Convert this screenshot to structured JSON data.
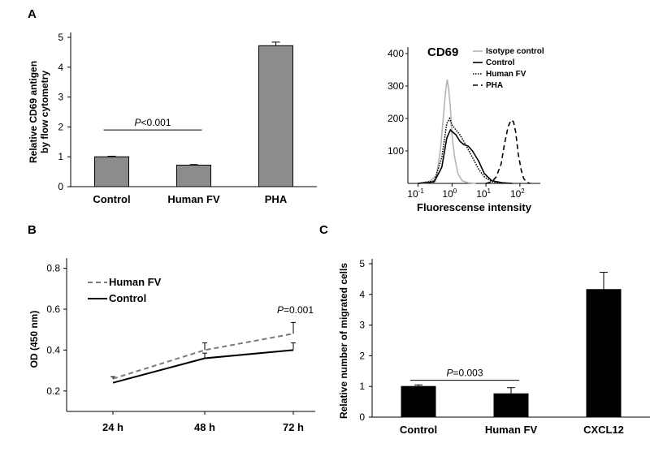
{
  "figure": {
    "panel_labels": [
      "A",
      "B",
      "C"
    ]
  },
  "chart_data": [
    {
      "id": "A1",
      "type": "bar",
      "title": "",
      "xlabel": "",
      "ylabel": "Relative CD69 antigen by flow cytometry",
      "ylabel_lines": [
        "Relative CD69 antigen",
        "by flow cytometry"
      ],
      "categories": [
        "Control",
        "Human FV",
        "PHA"
      ],
      "values": [
        1.0,
        0.72,
        4.72
      ],
      "errors": [
        0.02,
        0.02,
        0.12
      ],
      "ylim": [
        0,
        5
      ],
      "yticks": [
        0,
        1,
        2,
        3,
        4,
        5
      ],
      "bar_color": "#8c8c8c",
      "annotation": {
        "prefix": "P",
        "text": "<0.001",
        "between": [
          "Control",
          "Human FV"
        ],
        "y": 1.9
      }
    },
    {
      "id": "A2",
      "type": "line",
      "title": "CD69",
      "xlabel": "Fluorescense intensity",
      "ylabel": "",
      "xscale": "log",
      "xticks": [
        {
          "base": "10",
          "exp": "-1",
          "value": 0.1
        },
        {
          "base": "10",
          "exp": "0",
          "value": 1
        },
        {
          "base": "10",
          "exp": "1",
          "value": 10
        },
        {
          "base": "10",
          "exp": "2",
          "value": 100
        }
      ],
      "yticks": [
        100,
        200,
        300,
        400
      ],
      "ylim": [
        0,
        420
      ],
      "legend_position": "top-right",
      "series": [
        {
          "name": "Isotype control",
          "color": "#b4b4b4",
          "dash": "solid",
          "x": [
            0.1,
            0.2,
            0.35,
            0.45,
            0.55,
            0.65,
            0.72,
            0.8,
            0.9,
            1.0,
            1.2,
            1.5,
            2.0,
            3.0,
            5.0
          ],
          "y": [
            0,
            2,
            25,
            100,
            200,
            285,
            320,
            290,
            230,
            150,
            80,
            30,
            8,
            2,
            0
          ]
        },
        {
          "name": "Control",
          "color": "#000000",
          "dash": "solid",
          "x": [
            0.1,
            0.3,
            0.5,
            0.7,
            0.9,
            1.0,
            1.3,
            1.7,
            2.2,
            3.0,
            4.0,
            6.0,
            9.0,
            15.0,
            30.0,
            60.0
          ],
          "y": [
            0,
            5,
            50,
            140,
            165,
            160,
            150,
            130,
            120,
            115,
            100,
            70,
            30,
            8,
            2,
            0
          ]
        },
        {
          "name": "Human FV",
          "color": "#000000",
          "dash": "dotted",
          "x": [
            0.1,
            0.3,
            0.5,
            0.7,
            0.85,
            1.0,
            1.3,
            1.7,
            2.5,
            4.0,
            6.0,
            9.0,
            15.0,
            30.0
          ],
          "y": [
            0,
            8,
            80,
            185,
            200,
            180,
            165,
            150,
            120,
            80,
            45,
            20,
            5,
            0
          ]
        },
        {
          "name": "PHA",
          "color": "#000000",
          "dash": "dashed",
          "x": [
            10,
            15,
            20,
            28,
            35,
            45,
            55,
            65,
            75,
            90,
            110,
            130,
            160,
            200
          ],
          "y": [
            0,
            5,
            20,
            60,
            120,
            175,
            195,
            190,
            160,
            90,
            40,
            15,
            3,
            0
          ]
        }
      ]
    },
    {
      "id": "B",
      "type": "line",
      "title": "",
      "xlabel": "",
      "ylabel": "OD (450 nm)",
      "categories": [
        "24 h",
        "48 h",
        "72 h"
      ],
      "ylim": [
        0.1,
        0.85
      ],
      "yticks": [
        0.2,
        0.4,
        0.6,
        0.8
      ],
      "legend_position": "top-left",
      "series": [
        {
          "name": "Human FV",
          "color": "#7a7a7a",
          "dash": "dashed",
          "values": [
            0.26,
            0.4,
            0.48
          ],
          "errors": [
            0.01,
            0.035,
            0.055
          ]
        },
        {
          "name": "Control",
          "color": "#000000",
          "dash": "solid",
          "values": [
            0.24,
            0.36,
            0.4
          ],
          "errors": [
            0.005,
            0.025,
            0.035
          ]
        }
      ],
      "annotation": {
        "prefix": "P",
        "text": "=0.001",
        "at": "72 h"
      }
    },
    {
      "id": "C",
      "type": "bar",
      "title": "",
      "xlabel": "",
      "ylabel": "Relative number of migrated cells",
      "categories": [
        "Control",
        "Human FV",
        "CXCL12"
      ],
      "values": [
        1.0,
        0.76,
        4.16
      ],
      "errors": [
        0.05,
        0.2,
        0.56
      ],
      "ylim": [
        0,
        5
      ],
      "yticks": [
        0,
        1,
        2,
        3,
        4,
        5
      ],
      "bar_color": "#000000",
      "annotation": {
        "prefix": "P",
        "text": "=0.003",
        "between": [
          "Control",
          "Human FV"
        ],
        "y": 1.2
      }
    }
  ]
}
